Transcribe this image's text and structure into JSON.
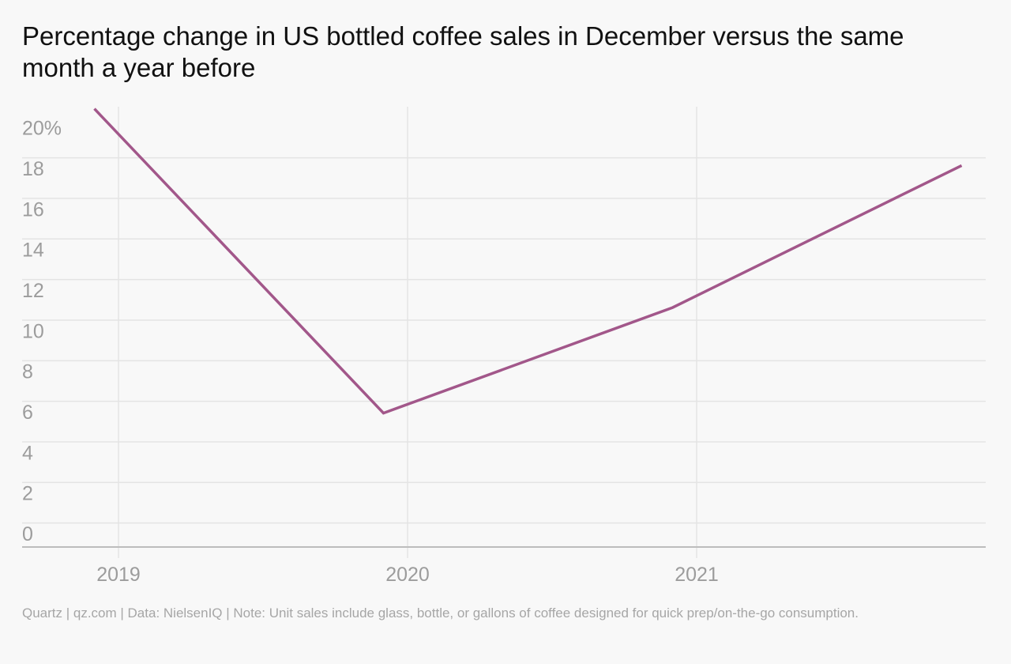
{
  "chart_data": {
    "type": "line",
    "title": "Percentage change in US bottled coffee sales in December versus the same month a year before",
    "x": [
      "2018-12",
      "2019-12",
      "2020-12",
      "2021-12"
    ],
    "x_tick_labels": [
      "2019",
      "2020",
      "2021"
    ],
    "y_tick_labels": [
      "20%",
      "18",
      "16",
      "14",
      "12",
      "10",
      "8",
      "6",
      "4",
      "2",
      "0"
    ],
    "ylim": [
      0,
      21.7
    ],
    "grid": true,
    "series": [
      {
        "values": [
          21.6,
          6.6,
          11.8,
          18.8
        ],
        "color": "#a2578a"
      }
    ],
    "source": "Quartz | qz.com | Data: NielsenIQ | Note: Unit sales include glass, bottle, or gallons of coffee designed for quick prep/on-the-go consumption."
  }
}
